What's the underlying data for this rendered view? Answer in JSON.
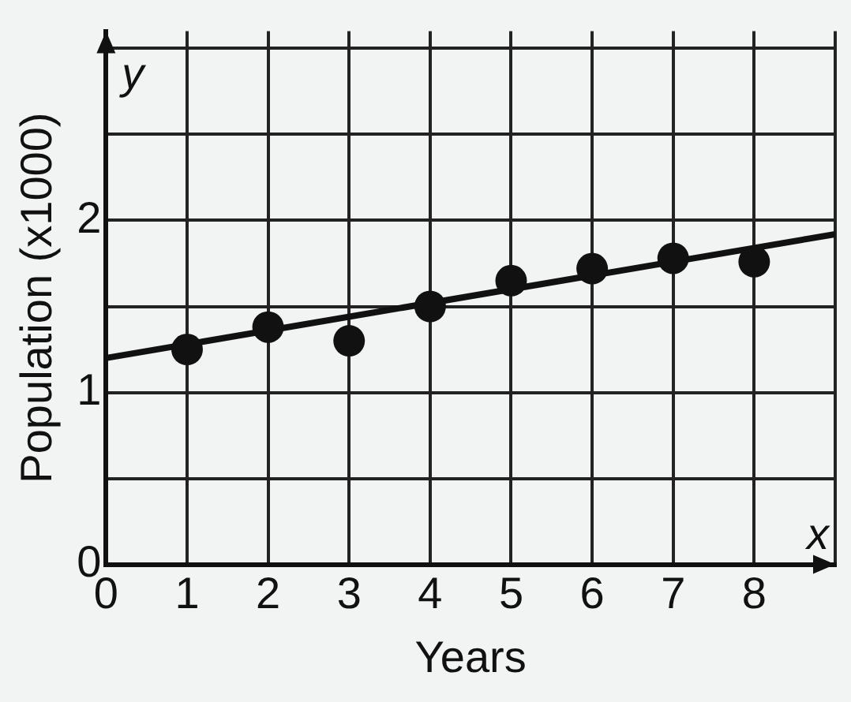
{
  "chart_data": {
    "type": "scatter",
    "xlabel": "Years",
    "ylabel": "Population (x1000)",
    "annotations": [
      "x",
      "y"
    ],
    "xlim": [
      0,
      9
    ],
    "ylim": [
      0,
      3.1
    ],
    "xticks": [
      0,
      1,
      2,
      3,
      4,
      5,
      6,
      7,
      8,
      {
        "value": 9,
        "label": null
      }
    ],
    "yticks": [
      0,
      {
        "value": 0.5,
        "label": null
      },
      1,
      {
        "value": 1.5,
        "label": null
      },
      2,
      {
        "value": 2.5,
        "label": null
      },
      {
        "value": 3,
        "label": null
      }
    ],
    "grid": true,
    "legend": false,
    "marker": "circle",
    "series": [
      {
        "type": "scatter",
        "color": "#111111",
        "x": [
          1,
          2,
          3,
          4,
          5,
          6,
          7,
          8
        ],
        "values": [
          1.25,
          1.38,
          1.3,
          1.5,
          1.65,
          1.72,
          1.78,
          1.76
        ]
      },
      {
        "type": "line",
        "color": "#111111",
        "marker": "none",
        "line_style": "solid",
        "x": [
          0,
          9
        ],
        "values": [
          1.2,
          1.92
        ]
      }
    ]
  }
}
